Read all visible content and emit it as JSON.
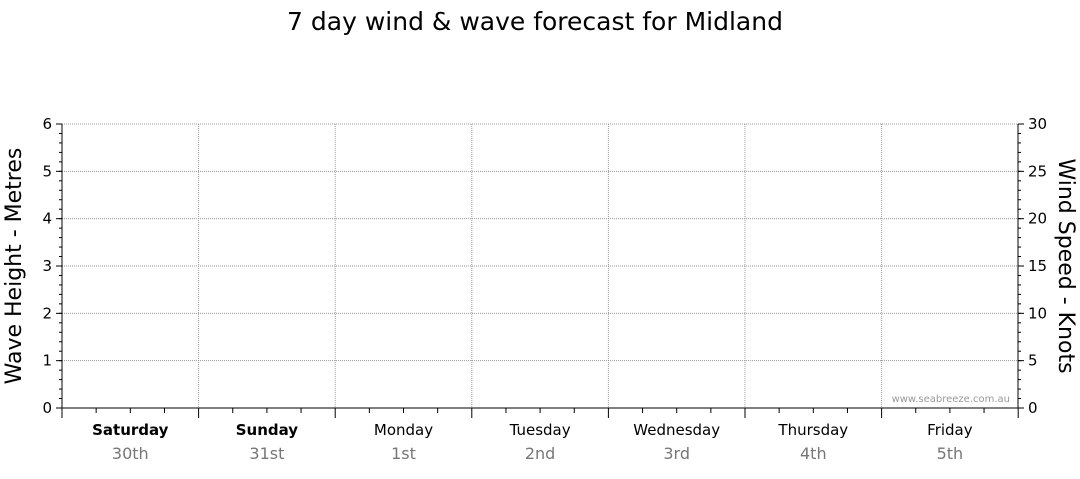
{
  "chart_data": {
    "type": "line",
    "title": "7 day wind & wave forecast for Midland",
    "ylabel_left": "Wave Height - Metres",
    "ylabel_right": "Wind Speed - Knots",
    "y_left": {
      "range": [
        0,
        6
      ],
      "ticks": [
        0,
        1,
        2,
        3,
        4,
        5,
        6
      ]
    },
    "y_right": {
      "range": [
        0,
        30
      ],
      "ticks": [
        0,
        5,
        10,
        15,
        20,
        25,
        30
      ]
    },
    "grid": true,
    "days": [
      {
        "name": "Saturday",
        "date": "30th",
        "bold": true
      },
      {
        "name": "Sunday",
        "date": "31st",
        "bold": true
      },
      {
        "name": "Monday",
        "date": "1st",
        "bold": false
      },
      {
        "name": "Tuesday",
        "date": "2nd",
        "bold": false
      },
      {
        "name": "Wednesday",
        "date": "3rd",
        "bold": false
      },
      {
        "name": "Thursday",
        "date": "4th",
        "bold": false
      },
      {
        "name": "Friday",
        "date": "5th",
        "bold": false
      }
    ],
    "series": [],
    "watermark": "www.seabreeze.com.au"
  },
  "colors": {
    "axis": "#000000",
    "grid": "#999999",
    "date_text": "#777777",
    "watermark": "#999999"
  }
}
